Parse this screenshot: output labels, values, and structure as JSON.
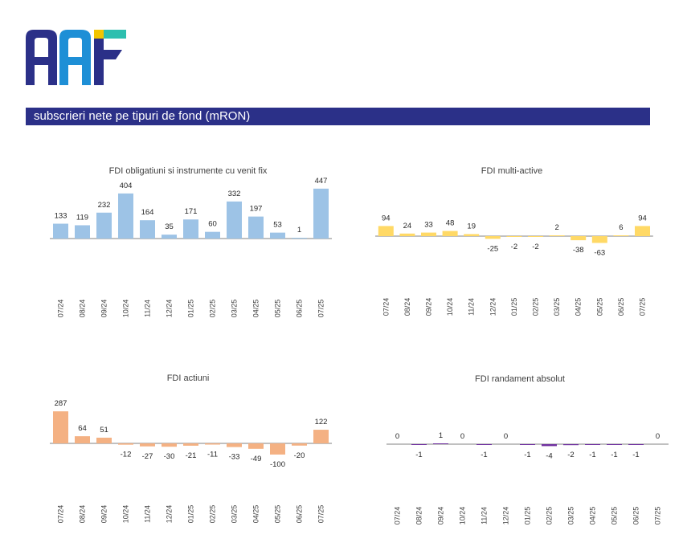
{
  "header": {
    "title": "subscrieri nete pe tipuri de fond (mRON)"
  },
  "logo": {
    "name": "AAF-logo",
    "colors": [
      "#2B3088",
      "#1E8FD6",
      "#2DBFAF",
      "#F2C500"
    ]
  },
  "categories": [
    "07/24",
    "08/24",
    "09/24",
    "10/24",
    "11/24",
    "12/24",
    "01/25",
    "02/25",
    "03/25",
    "04/25",
    "05/25",
    "06/25",
    "07/25"
  ],
  "chart_data": [
    {
      "type": "bar",
      "title": "FDI obligatiuni si instrumente cu venit fix",
      "color": "#9DC3E6",
      "categories": [
        "07/24",
        "08/24",
        "09/24",
        "10/24",
        "11/24",
        "12/24",
        "01/25",
        "02/25",
        "03/25",
        "04/25",
        "05/25",
        "06/25",
        "07/25"
      ],
      "values": [
        133,
        119,
        232,
        404,
        164,
        35,
        171,
        60,
        332,
        197,
        53,
        1,
        447
      ],
      "labels": [
        "133",
        "119",
        "232",
        "404",
        "164",
        "35",
        "171",
        "60",
        "332",
        "197",
        "53",
        "1",
        "447"
      ]
    },
    {
      "type": "bar",
      "title": "FDI multi-active",
      "color": "#FFD966",
      "categories": [
        "07/24",
        "08/24",
        "09/24",
        "10/24",
        "11/24",
        "12/24",
        "01/25",
        "02/25",
        "03/25",
        "04/25",
        "05/25",
        "06/25",
        "07/25"
      ],
      "values": [
        94,
        24,
        33,
        48,
        19,
        -25,
        -2,
        -2,
        2,
        -38,
        -63,
        6,
        94
      ],
      "labels": [
        "94",
        "24",
        "33",
        "48",
        "19",
        "-25",
        "-2",
        "-2",
        "2",
        "-38",
        "-63",
        "6",
        "94"
      ]
    },
    {
      "type": "bar",
      "title": "FDI actiuni",
      "color": "#F4B183",
      "categories": [
        "07/24",
        "08/24",
        "09/24",
        "10/24",
        "11/24",
        "12/24",
        "01/25",
        "02/25",
        "03/25",
        "04/25",
        "05/25",
        "06/25",
        "07/25"
      ],
      "values": [
        287,
        64,
        51,
        -12,
        -27,
        -30,
        -21,
        -11,
        -33,
        -49,
        -100,
        -20,
        122
      ],
      "labels": [
        "287",
        "64",
        "51",
        "-12",
        "-27",
        "-30",
        "-21",
        "-11",
        "-33",
        "-49",
        "-100",
        "-20",
        "122"
      ]
    },
    {
      "type": "bar",
      "title": "FDI randament absolut",
      "color": "#7030A0",
      "categories": [
        "07/24",
        "08/24",
        "09/24",
        "10/24",
        "11/24",
        "12/24",
        "01/25",
        "02/25",
        "03/25",
        "04/25",
        "05/25",
        "06/25",
        "07/25"
      ],
      "values": [
        0,
        -1,
        1,
        0,
        -1,
        0,
        -1,
        -4,
        -2,
        -1,
        -1,
        -1,
        0
      ],
      "labels": [
        "0",
        "-1",
        "1",
        "0",
        "-1",
        "0",
        "-1",
        "-4",
        "-2",
        "-1",
        "-1",
        "-1",
        "0"
      ]
    }
  ]
}
